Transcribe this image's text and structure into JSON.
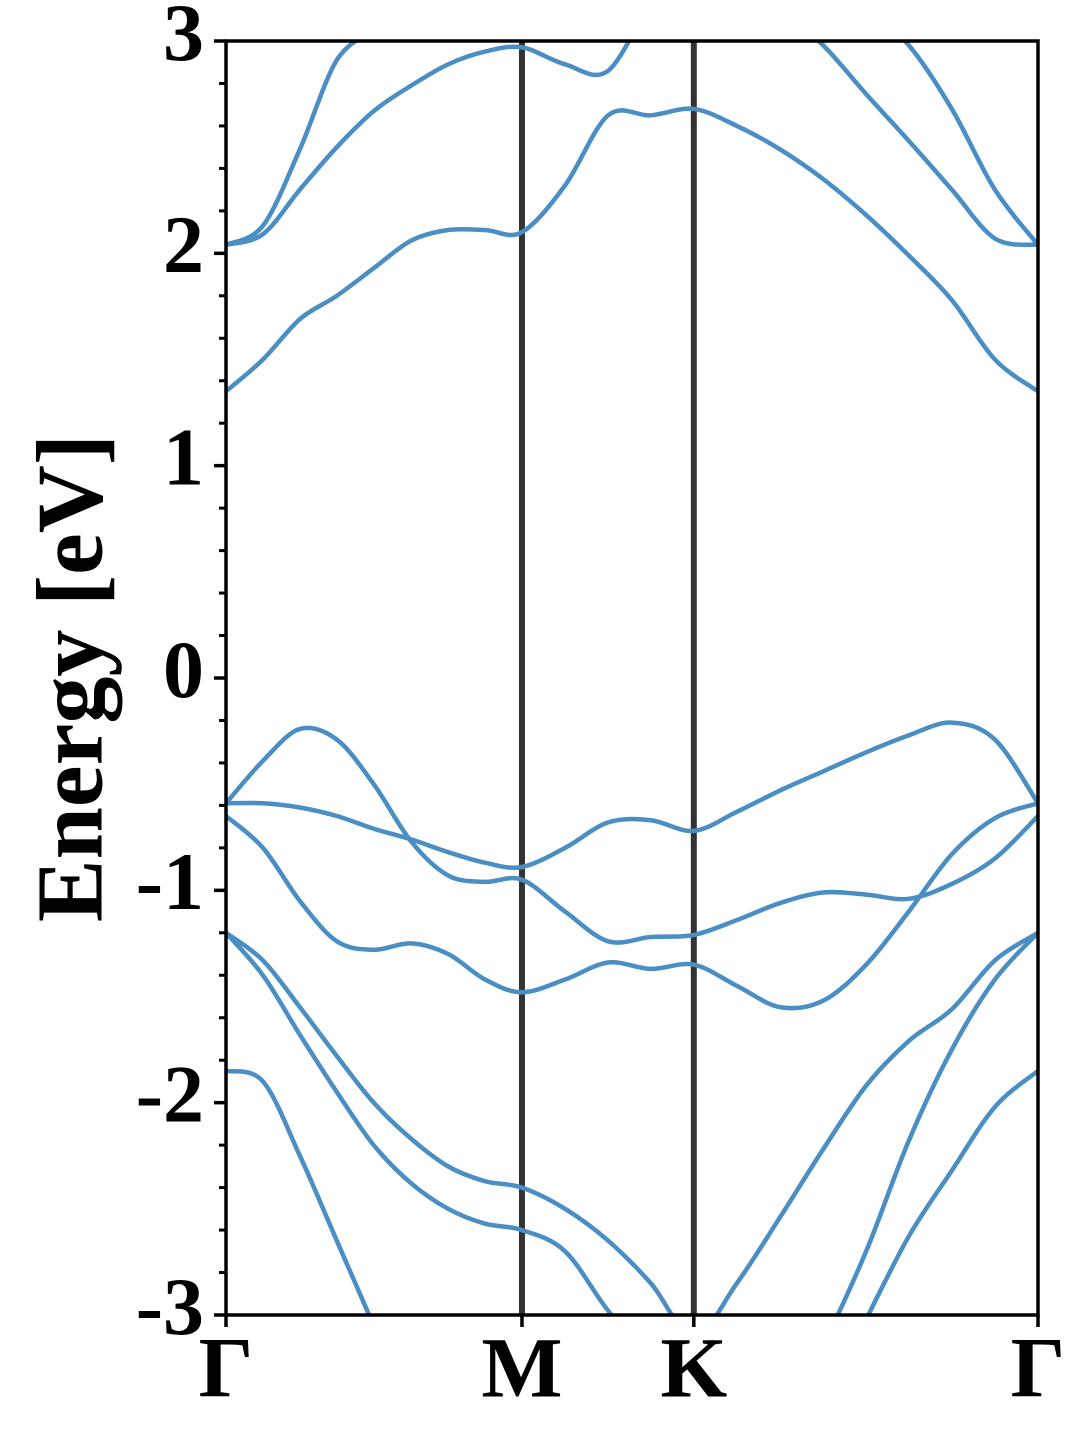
{
  "chart_data": {
    "type": "line",
    "ylabel": "Energy [eV]",
    "x": [
      0,
      0.072,
      0.144,
      0.216,
      0.288,
      0.361,
      0.433,
      0.505,
      0.577,
      0.661,
      0.745,
      0.828,
      0.912,
      0.996,
      1.08,
      1.164,
      1.248,
      1.331,
      1.415,
      1.499,
      1.583
    ],
    "xlim": [
      0,
      1.583
    ],
    "xticks": [
      {
        "value": 0,
        "label": "Γ"
      },
      {
        "value": 0.577,
        "label": "M"
      },
      {
        "value": 0.912,
        "label": "K"
      },
      {
        "value": 1.583,
        "label": "Γ"
      }
    ],
    "ylim": [
      -3,
      3
    ],
    "yticks": [
      -3,
      -2,
      -1,
      0,
      1,
      2,
      3
    ],
    "yminorticks": [
      -2.8,
      -2.6,
      -2.4,
      -2.2,
      -1.8,
      -1.6,
      -1.4,
      -1.2,
      -0.8,
      -0.6,
      -0.4,
      -0.2,
      0.2,
      0.4,
      0.6,
      0.8,
      1.2,
      1.4,
      1.6,
      1.8,
      2.2,
      2.4,
      2.6,
      2.8
    ],
    "color": "#4a8ec3",
    "vline_color": "#333333",
    "series": [
      {
        "values": [
          1.35,
          1.5,
          1.69,
          1.8,
          1.93,
          2.06,
          2.11,
          2.11,
          2.1,
          2.32,
          2.65,
          2.65,
          2.68,
          2.6,
          2.49,
          2.35,
          2.18,
          1.99,
          1.78,
          1.5,
          1.35
        ]
      },
      {
        "values": [
          2.04,
          2.09,
          2.3,
          2.5,
          2.67,
          2.79,
          2.89,
          2.95,
          2.97,
          2.89,
          2.86,
          3.2,
          null,
          null,
          3.15,
          2.98,
          2.75,
          2.53,
          2.3,
          2.07,
          2.04
        ]
      },
      {
        "values": [
          2.04,
          2.13,
          2.49,
          2.91,
          3.05,
          null,
          null,
          null,
          null,
          null,
          null,
          null,
          null,
          null,
          null,
          null,
          3.15,
          2.98,
          2.68,
          2.3,
          2.04
        ]
      },
      {
        "values": [
          -0.59,
          -0.39,
          -0.24,
          -0.29,
          -0.5,
          -0.77,
          -0.93,
          -0.96,
          -0.95,
          -1.1,
          -1.24,
          -1.22,
          -1.21,
          -1.14,
          -1.06,
          -1.01,
          -1.02,
          -1.04,
          -0.97,
          -0.85,
          -0.65
        ]
      },
      {
        "values": [
          -0.59,
          -0.59,
          -0.61,
          -0.65,
          -0.71,
          -0.76,
          -0.82,
          -0.87,
          -0.89,
          -0.8,
          -0.68,
          -0.67,
          -0.72,
          -0.63,
          -0.53,
          -0.44,
          -0.35,
          -0.27,
          -0.21,
          -0.29,
          -0.59
        ]
      },
      {
        "values": [
          -0.65,
          -0.8,
          -1.05,
          -1.24,
          -1.28,
          -1.25,
          -1.3,
          -1.42,
          -1.48,
          -1.42,
          -1.34,
          -1.37,
          -1.35,
          -1.45,
          -1.55,
          -1.52,
          -1.35,
          -1.1,
          -0.83,
          -0.66,
          -0.59
        ]
      },
      {
        "values": [
          -1.2,
          -1.33,
          -1.55,
          -1.78,
          -2.0,
          -2.17,
          -2.3,
          -2.37,
          -2.4,
          -2.5,
          -2.65,
          -2.85,
          -3.1,
          -2.85,
          -2.54,
          -2.22,
          -1.92,
          -1.71,
          -1.56,
          -1.33,
          -1.2
        ]
      },
      {
        "values": [
          -1.2,
          -1.4,
          -1.68,
          -1.95,
          -2.2,
          -2.38,
          -2.5,
          -2.57,
          -2.6,
          -2.7,
          -2.98,
          -3.2,
          null,
          null,
          null,
          -3.15,
          -2.7,
          -2.18,
          -1.75,
          -1.42,
          -1.2
        ]
      },
      {
        "values": [
          -1.85,
          -1.9,
          -2.25,
          -2.65,
          -3.05,
          null,
          null,
          null,
          null,
          null,
          null,
          null,
          null,
          null,
          null,
          null,
          -3.02,
          -2.63,
          -2.32,
          -2.02,
          -1.85
        ]
      }
    ]
  }
}
